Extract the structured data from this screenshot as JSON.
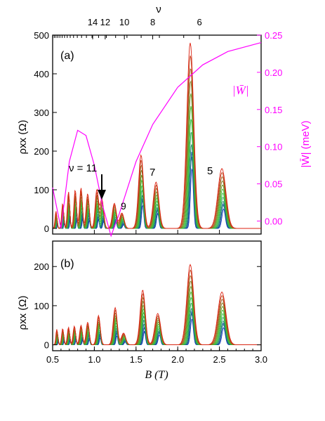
{
  "chart_data": [
    {
      "panel": "(a)",
      "type": "line",
      "xlabel": "B (T)",
      "x_unit": "T",
      "xlim": [
        0.5,
        3.0
      ],
      "ylabel": "ρxx (Ω)",
      "ylim": [
        0,
        500
      ],
      "yticks": [
        0,
        100,
        200,
        300,
        400,
        500
      ],
      "y2label": "|W̄| (meV)",
      "y2lim": [
        -0.0175,
        0.25
      ],
      "y2ticks": [
        "0.00",
        "0.05",
        "0.10",
        "0.15",
        "0.20",
        "0.25"
      ],
      "top_axis_label": "ν",
      "top_ticks": [
        "14",
        "12",
        "10",
        "8",
        "6"
      ],
      "top_tick_B": [
        0.98,
        1.13,
        1.36,
        1.7,
        2.26
      ],
      "annotations": [
        "ν = 11",
        "9",
        "7",
        "5",
        "|W̄|"
      ],
      "colors": {
        "hot": "#dd2211",
        "mid": "#33cc33",
        "cold": "#1133bb",
        "w": "#ff00ff"
      },
      "peaks": [
        {
          "B": 0.54,
          "rho": 45
        },
        {
          "B": 0.62,
          "rho": 65
        },
        {
          "B": 0.69,
          "rho": 95
        },
        {
          "B": 0.77,
          "rho": 100
        },
        {
          "B": 0.84,
          "rho": 105
        },
        {
          "B": 0.92,
          "rho": 90
        },
        {
          "B": 1.03,
          "rho": 100
        },
        {
          "B": 1.09,
          "rho": 75
        },
        {
          "B": 1.24,
          "rho": 65
        },
        {
          "B": 1.33,
          "rho": 40
        },
        {
          "B": 1.56,
          "rho": 190
        },
        {
          "B": 1.74,
          "rho": 120
        },
        {
          "B": 2.15,
          "rho": 480
        },
        {
          "B": 2.53,
          "rho": 155
        }
      ],
      "w_curve": {
        "x": [
          0.5,
          0.6,
          0.7,
          0.8,
          0.9,
          1.0,
          1.1,
          1.2,
          1.3,
          1.5,
          1.7,
          2.0,
          2.3,
          2.6,
          3.0
        ],
        "y": [
          0.045,
          -0.01,
          0.08,
          0.122,
          0.115,
          0.075,
          0.02,
          -0.02,
          0.01,
          0.08,
          0.13,
          0.18,
          0.21,
          0.228,
          0.24
        ]
      }
    },
    {
      "panel": "(b)",
      "type": "line",
      "xlabel": "B (T)",
      "x_unit": "T",
      "xlim": [
        0.5,
        3.0
      ],
      "xticks": [
        "0.5",
        "1.0",
        "1.5",
        "2.0",
        "2.5",
        "3.0"
      ],
      "ylabel": "ρxx (Ω)",
      "ylim": [
        -15,
        265
      ],
      "yticks": [
        0,
        100,
        200
      ],
      "peaks": [
        {
          "B": 0.55,
          "rho": 40
        },
        {
          "B": 0.62,
          "rho": 42
        },
        {
          "B": 0.69,
          "rho": 45
        },
        {
          "B": 0.76,
          "rho": 48
        },
        {
          "B": 0.84,
          "rho": 50
        },
        {
          "B": 0.92,
          "rho": 58
        },
        {
          "B": 1.05,
          "rho": 75
        },
        {
          "B": 1.25,
          "rho": 95
        },
        {
          "B": 1.35,
          "rho": 30
        },
        {
          "B": 1.58,
          "rho": 140
        },
        {
          "B": 1.76,
          "rho": 80
        },
        {
          "B": 2.15,
          "rho": 205
        },
        {
          "B": 2.53,
          "rho": 135
        }
      ]
    }
  ],
  "labels": {
    "panel_a": "(a)",
    "panel_b": "(b)",
    "ylabel_a": "ρxx (Ω)",
    "ylabel_b": "ρxx (Ω)",
    "y2label": "|W̄| (meV)",
    "xlabel": "B (T)",
    "top_label": "ν",
    "nu11": "ν = 11",
    "n9": "9",
    "n7": "7",
    "n5": "5",
    "w_legend": "|W̄|"
  }
}
